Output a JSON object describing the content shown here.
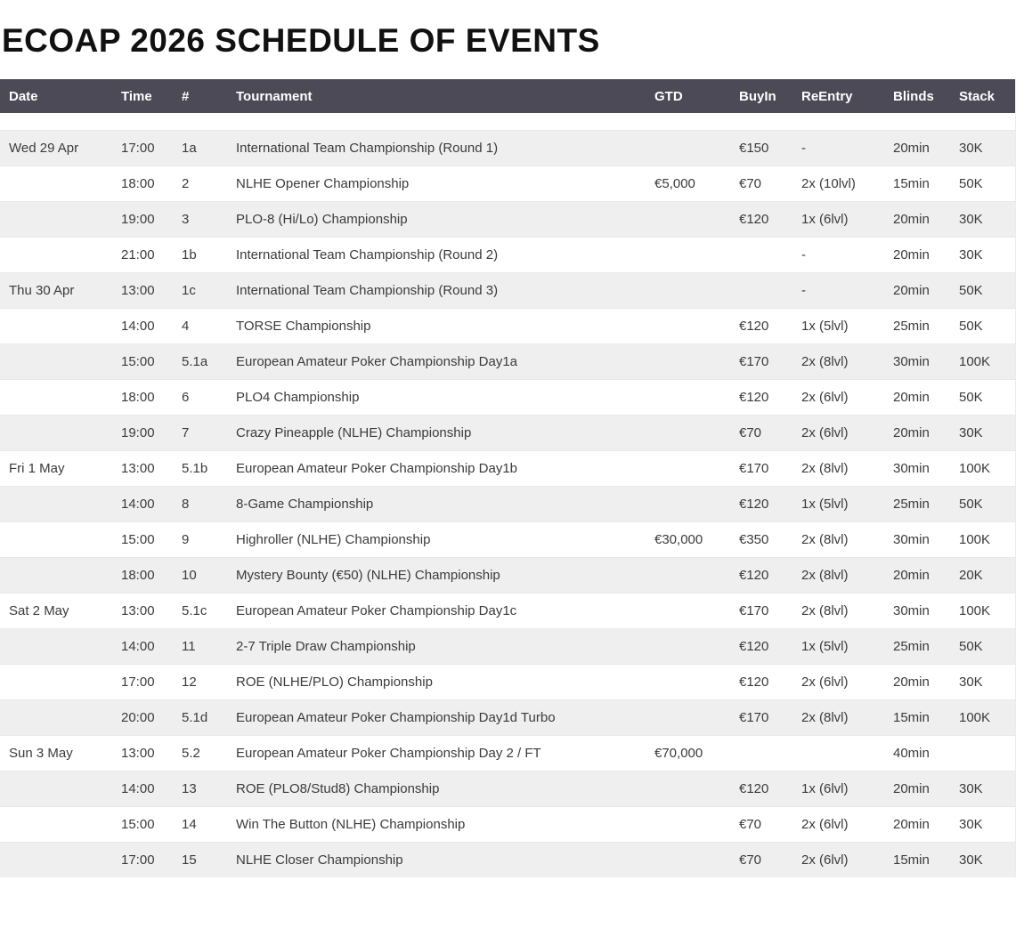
{
  "page": {
    "title": "ECOAP 2026 SCHEDULE OF EVENTS"
  },
  "colors": {
    "header_bg": "#4c4a56",
    "header_text": "#ffffff",
    "row_alt_bg": "#efefef",
    "row_bg": "#ffffff",
    "body_text": "#3b3b3b",
    "title_text": "#111111"
  },
  "table": {
    "columns": [
      "Date",
      "Time",
      "#",
      "Tournament",
      "GTD",
      "BuyIn",
      "ReEntry",
      "Blinds",
      "Stack"
    ],
    "column_keys": [
      "date",
      "time",
      "num",
      "tournament",
      "gtd",
      "buyin",
      "reentry",
      "blinds",
      "stack"
    ],
    "rows": [
      [
        "Wed 29 Apr",
        "17:00",
        "1a",
        "International Team Championship (Round 1)",
        "",
        "€150",
        "-",
        "20min",
        "30K"
      ],
      [
        "",
        "18:00",
        "2",
        "NLHE Opener Championship",
        "€5,000",
        "€70",
        "2x (10lvl)",
        "15min",
        "50K"
      ],
      [
        "",
        "19:00",
        "3",
        "PLO-8 (Hi/Lo) Championship",
        "",
        "€120",
        "1x (6lvl)",
        "20min",
        "30K"
      ],
      [
        "",
        "21:00",
        "1b",
        "International Team Championship (Round 2)",
        "",
        "",
        "-",
        "20min",
        "30K"
      ],
      [
        "Thu 30 Apr",
        "13:00",
        "1c",
        "International Team Championship (Round 3)",
        "",
        "",
        "-",
        "20min",
        "50K"
      ],
      [
        "",
        "14:00",
        "4",
        "TORSE Championship",
        "",
        "€120",
        "1x (5lvl)",
        "25min",
        "50K"
      ],
      [
        "",
        "15:00",
        "5.1a",
        "European Amateur Poker Championship Day1a",
        "",
        "€170",
        "2x (8lvl)",
        "30min",
        "100K"
      ],
      [
        "",
        "18:00",
        "6",
        "PLO4 Championship",
        "",
        "€120",
        "2x (6lvl)",
        "20min",
        "50K"
      ],
      [
        "",
        "19:00",
        "7",
        "Crazy Pineapple (NLHE) Championship",
        "",
        "€70",
        "2x (6lvl)",
        "20min",
        "30K"
      ],
      [
        "Fri 1 May",
        "13:00",
        "5.1b",
        "European Amateur Poker Championship Day1b",
        "",
        "€170",
        "2x (8lvl)",
        "30min",
        "100K"
      ],
      [
        "",
        "14:00",
        "8",
        "8-Game Championship",
        "",
        "€120",
        "1x (5lvl)",
        "25min",
        "50K"
      ],
      [
        "",
        "15:00",
        "9",
        "Highroller (NLHE) Championship",
        "€30,000",
        "€350",
        "2x (8lvl)",
        "30min",
        "100K"
      ],
      [
        "",
        "18:00",
        "10",
        "Mystery Bounty (€50) (NLHE) Championship",
        "",
        "€120",
        "2x (8lvl)",
        "20min",
        "20K"
      ],
      [
        "Sat 2 May",
        "13:00",
        "5.1c",
        "European Amateur Poker Championship Day1c",
        "",
        "€170",
        "2x (8lvl)",
        "30min",
        "100K"
      ],
      [
        "",
        "14:00",
        "11",
        "2-7 Triple Draw Championship",
        "",
        "€120",
        "1x (5lvl)",
        "25min",
        "50K"
      ],
      [
        "",
        "17:00",
        "12",
        "ROE (NLHE/PLO) Championship",
        "",
        "€120",
        "2x (6lvl)",
        "20min",
        "30K"
      ],
      [
        "",
        "20:00",
        "5.1d",
        "European Amateur Poker Championship Day1d Turbo",
        "",
        "€170",
        "2x (8lvl)",
        "15min",
        "100K"
      ],
      [
        "Sun 3 May",
        "13:00",
        "5.2",
        "European Amateur Poker Championship Day 2 / FT",
        "€70,000",
        "",
        "",
        "40min",
        ""
      ],
      [
        "",
        "14:00",
        "13",
        "ROE (PLO8/Stud8) Championship",
        "",
        "€120",
        "1x (6lvl)",
        "20min",
        "30K"
      ],
      [
        "",
        "15:00",
        "14",
        "Win The Button (NLHE) Championship",
        "",
        "€70",
        "2x (6lvl)",
        "20min",
        "30K"
      ],
      [
        "",
        "17:00",
        "15",
        "NLHE Closer Championship",
        "",
        "€70",
        "2x (6lvl)",
        "15min",
        "30K"
      ]
    ]
  }
}
